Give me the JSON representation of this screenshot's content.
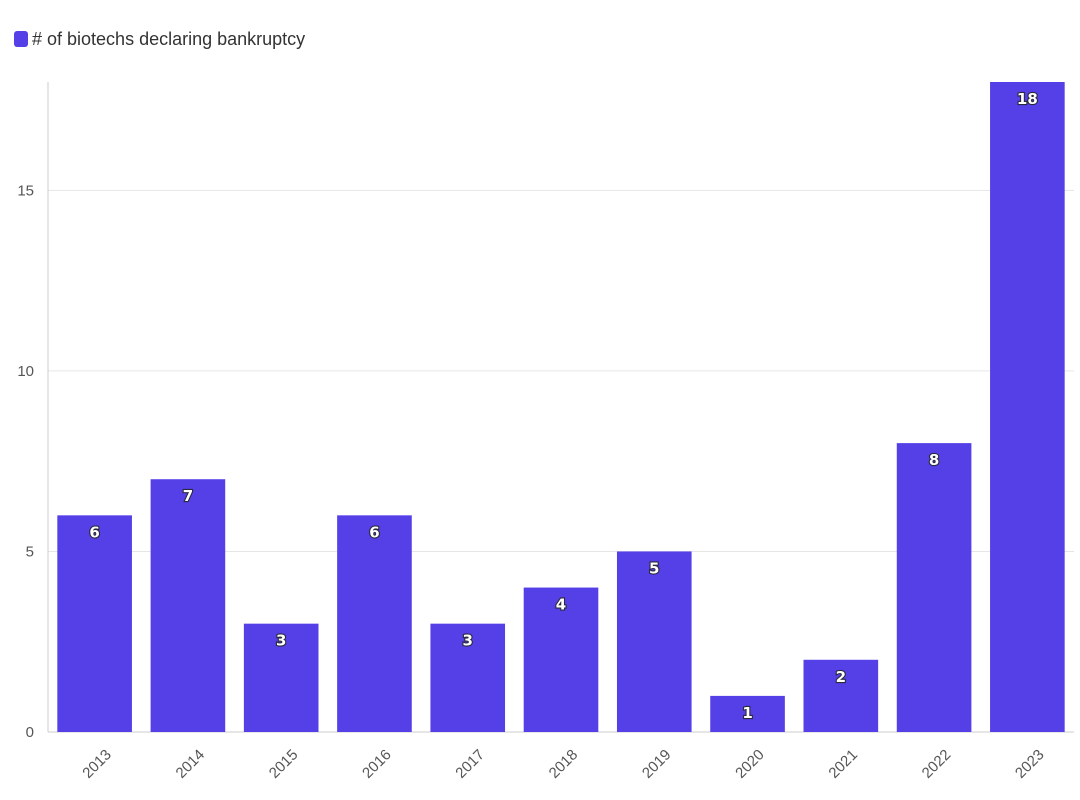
{
  "chart_data": {
    "type": "bar",
    "categories": [
      "2013",
      "2014",
      "2015",
      "2016",
      "2017",
      "2018",
      "2019",
      "2020",
      "2021",
      "2022",
      "2023"
    ],
    "series": [
      {
        "name": "# of biotechs declaring bankruptcy",
        "values": [
          6,
          7,
          3,
          6,
          3,
          4,
          5,
          1,
          2,
          8,
          18
        ],
        "color": "#5540e8"
      }
    ],
    "ylim": [
      0,
      18
    ],
    "yticks": [
      0,
      5,
      10,
      15
    ],
    "grid": true,
    "legend": "top-left",
    "data_labels": true
  }
}
